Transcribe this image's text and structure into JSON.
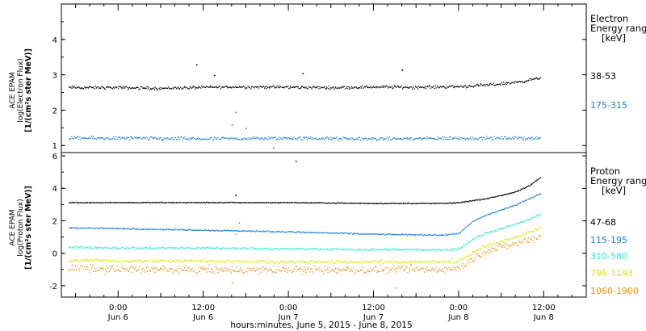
{
  "colors": {
    "black": "#000000",
    "blue": "#1f7fd6",
    "cyan": "#2ee8d0",
    "yellow": "#d8e800",
    "orange": "#f08c10"
  },
  "x_axis": {
    "title": "hours:minutes, June  5, 2015 - June  8, 2015",
    "ticks": [
      {
        "t": 24,
        "l1": "0:00",
        "l2": "Jun 6"
      },
      {
        "t": 36,
        "l1": "12:00",
        "l2": "Jun 6"
      },
      {
        "t": 48,
        "l1": "0:00",
        "l2": "Jun 7"
      },
      {
        "t": 60,
        "l1": "12:00",
        "l2": "Jun 7"
      },
      {
        "t": 72,
        "l1": "0:00",
        "l2": "Jun 8"
      },
      {
        "t": 84,
        "l1": "12:00",
        "l2": "Jun 8"
      }
    ]
  },
  "top_panel": {
    "ylabel_lines": [
      "ACE EPAM",
      "log(Electron Flux)",
      "[1/(cm²s ster MeV)]"
    ],
    "legend_title": [
      "Electron",
      "Energy range",
      "[keV]"
    ],
    "legend_items": [
      {
        "label": "38-53",
        "color": "#000000"
      },
      {
        "label": "175-315",
        "color": "#1f7fd6"
      }
    ]
  },
  "bottom_panel": {
    "ylabel_lines": [
      "ACE EPAM",
      "log(Proton Flux)",
      "[1/(cm²s ster MeV)]"
    ],
    "legend_title": [
      "Proton",
      "Energy range",
      "[keV]"
    ],
    "legend_items": [
      {
        "label": "47-68",
        "color": "#000000"
      },
      {
        "label": "115-195",
        "color": "#1f7fd6"
      },
      {
        "label": "310-580",
        "color": "#2ee8d0"
      },
      {
        "label": "795-1193",
        "color": "#d8e800"
      },
      {
        "label": "1060-1900",
        "color": "#f08c10"
      }
    ]
  },
  "chart_data": [
    {
      "type": "scatter",
      "x_unit": "hours since 2015-06-05 00:00 UT",
      "xlim": [
        16,
        90
      ],
      "ylim": [
        0.8,
        5
      ],
      "yticks": [
        1,
        2,
        3,
        4
      ],
      "ytick_labels": [
        "1",
        "2",
        "3",
        "4"
      ],
      "series": [
        {
          "name": "38-53",
          "color": "#000000",
          "x": [
            17,
            24,
            30,
            36,
            42,
            48,
            54,
            60,
            66,
            72,
            76,
            80,
            83.5
          ],
          "y": [
            2.65,
            2.65,
            2.63,
            2.66,
            2.67,
            2.66,
            2.65,
            2.67,
            2.66,
            2.68,
            2.72,
            2.8,
            2.92
          ],
          "scatter": 0.06,
          "outliers": [
            [
              35,
              3.3
            ],
            [
              37.5,
              3.0
            ],
            [
              50,
              3.05
            ],
            [
              64,
              3.15
            ]
          ]
        },
        {
          "name": "175-315",
          "color": "#1f7fd6",
          "x": [
            17,
            24,
            36,
            48,
            60,
            72,
            83.5
          ],
          "y": [
            1.22,
            1.22,
            1.2,
            1.22,
            1.2,
            1.22,
            1.22
          ],
          "scatter": 0.07,
          "outliers": [
            [
              40.5,
              1.95
            ],
            [
              42,
              1.5
            ],
            [
              40,
              1.6
            ],
            [
              45.8,
              0.95
            ]
          ]
        }
      ]
    },
    {
      "type": "scatter",
      "x_unit": "hours since 2015-06-05 00:00 UT",
      "xlim": [
        16,
        90
      ],
      "ylim": [
        -2.7,
        6.2
      ],
      "yticks": [
        -2,
        0,
        2,
        4,
        6
      ],
      "ytick_labels": [
        "-2",
        "0",
        "2",
        "4",
        "6"
      ],
      "series": [
        {
          "name": "47-68",
          "color": "#000000",
          "x": [
            17,
            24,
            36,
            48,
            60,
            70,
            72,
            76,
            80,
            82,
            83.5
          ],
          "y": [
            3.15,
            3.15,
            3.15,
            3.15,
            3.1,
            3.1,
            3.15,
            3.4,
            3.8,
            4.2,
            4.7
          ],
          "scatter": 0.04,
          "outliers": [
            [
              40.5,
              3.6
            ],
            [
              49,
              5.7
            ]
          ]
        },
        {
          "name": "115-195",
          "color": "#1f7fd6",
          "x": [
            17,
            24,
            36,
            48,
            60,
            70,
            72,
            74,
            76,
            80,
            83.5
          ],
          "y": [
            1.6,
            1.55,
            1.45,
            1.35,
            1.2,
            1.15,
            1.25,
            2.0,
            2.4,
            3.0,
            3.7
          ],
          "scatter": 0.06,
          "outliers": [
            [
              41,
              1.9
            ]
          ]
        },
        {
          "name": "310-580",
          "color": "#2ee8d0",
          "x": [
            17,
            24,
            36,
            48,
            60,
            70,
            72,
            74,
            76,
            80,
            83.5
          ],
          "y": [
            0.4,
            0.35,
            0.35,
            0.3,
            0.25,
            0.25,
            0.3,
            0.9,
            1.3,
            1.8,
            2.4
          ],
          "scatter": 0.1,
          "outliers": [
            [
              40.5,
              1.2
            ]
          ]
        },
        {
          "name": "795-1193",
          "color": "#d8e800",
          "x": [
            17,
            24,
            36,
            48,
            60,
            70,
            72,
            74,
            76,
            80,
            83.5
          ],
          "y": [
            -0.4,
            -0.45,
            -0.45,
            -0.5,
            -0.5,
            -0.5,
            -0.45,
            0.1,
            0.5,
            1.0,
            1.6
          ],
          "scatter": 0.15,
          "outliers": []
        },
        {
          "name": "1060-1900",
          "color": "#f08c10",
          "x": [
            17,
            24,
            36,
            48,
            60,
            70,
            72,
            74,
            76,
            80,
            83.5
          ],
          "y": [
            -0.9,
            -0.95,
            -1.0,
            -1.0,
            -1.0,
            -0.95,
            -0.9,
            -0.3,
            0.2,
            0.6,
            1.1
          ],
          "scatter": 0.35,
          "outliers": [
            [
              63,
              -2.1
            ],
            [
              40,
              -1.8
            ]
          ]
        }
      ]
    }
  ]
}
